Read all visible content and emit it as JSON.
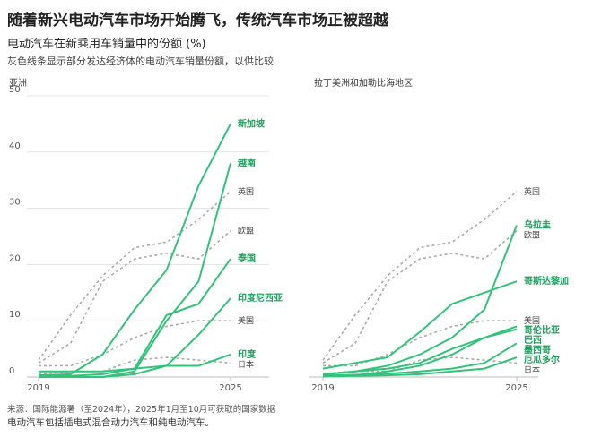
{
  "header": {
    "title": "随着新兴电动汽车市场开始腾飞，传统汽车市场正被超越",
    "subtitle": "电动汽车在新乘用车销量中的份额 (%)",
    "description": "灰色线条显示部分发达经济体的电动汽车销量份额，以供比较"
  },
  "footer": {
    "source": "来源：国际能源署（至2024年），2025年1月至10月可获取的国家数据",
    "note": "电动汽车包括插电式混合动力汽车和纯电动汽车。"
  },
  "chart_data": [
    {
      "type": "line",
      "title": "亚洲",
      "x": [
        2019,
        2020,
        2021,
        2022,
        2023,
        2024,
        2025
      ],
      "xlim": [
        2019,
        2025
      ],
      "xticks": [
        2019,
        2025
      ],
      "ylim": [
        0,
        50
      ],
      "yticks": [
        0,
        10,
        20,
        30,
        40,
        50
      ],
      "grid": true,
      "series": [
        {
          "name": "英国",
          "color": "#aaaaaa",
          "linestyle": "dashed",
          "values": [
            3,
            11,
            18,
            23,
            24,
            28,
            33
          ]
        },
        {
          "name": "欧盟",
          "color": "#aaaaaa",
          "linestyle": "dashed",
          "values": [
            2.5,
            6,
            17,
            21,
            22,
            21,
            26
          ]
        },
        {
          "name": "美国",
          "color": "#aaaaaa",
          "linestyle": "dashed",
          "values": [
            2,
            2,
            4,
            7,
            9,
            10,
            10
          ]
        },
        {
          "name": "日本",
          "color": "#aaaaaa",
          "linestyle": "dashed",
          "values": [
            0.5,
            1,
            1,
            3,
            3.5,
            3,
            2.5
          ]
        },
        {
          "name": "新加坡",
          "color": "#33c27a",
          "linestyle": "solid",
          "values": [
            0.3,
            0.5,
            4,
            12,
            19,
            34,
            45
          ]
        },
        {
          "name": "越南",
          "color": "#33c27a",
          "linestyle": "solid",
          "values": [
            0,
            0,
            0,
            1,
            10,
            17,
            38
          ]
        },
        {
          "name": "泰国",
          "color": "#33c27a",
          "linestyle": "solid",
          "values": [
            0.2,
            0.2,
            0.5,
            1.5,
            11,
            13,
            21
          ]
        },
        {
          "name": "印度尼西亚",
          "color": "#33c27a",
          "linestyle": "solid",
          "values": [
            0,
            0,
            0,
            0.5,
            2,
            7.5,
            14
          ]
        },
        {
          "name": "印度",
          "color": "#33c27a",
          "linestyle": "solid",
          "values": [
            1,
            1,
            1,
            1.5,
            2,
            2,
            4
          ]
        }
      ]
    },
    {
      "type": "line",
      "title": "拉丁美洲和加勒比海地区",
      "x": [
        2019,
        2020,
        2021,
        2022,
        2023,
        2024,
        2025
      ],
      "xlim": [
        2019,
        2025
      ],
      "xticks": [
        2019,
        2025
      ],
      "ylim": [
        0,
        50
      ],
      "grid": false,
      "series": [
        {
          "name": "英国",
          "color": "#aaaaaa",
          "linestyle": "dashed",
          "values": [
            3,
            11,
            18,
            23,
            24,
            28,
            33
          ]
        },
        {
          "name": "欧盟",
          "color": "#aaaaaa",
          "linestyle": "dashed",
          "values": [
            2.5,
            6,
            17,
            21,
            22,
            21,
            26
          ]
        },
        {
          "name": "美国",
          "color": "#aaaaaa",
          "linestyle": "dashed",
          "values": [
            2,
            2,
            4,
            7,
            9,
            10,
            10
          ]
        },
        {
          "name": "日本",
          "color": "#aaaaaa",
          "linestyle": "dashed",
          "values": [
            0.5,
            1,
            1,
            3,
            3.5,
            3,
            2.5
          ]
        },
        {
          "name": "乌拉圭",
          "color": "#33c27a",
          "linestyle": "solid",
          "values": [
            0.5,
            1,
            2,
            4,
            7,
            12,
            27
          ]
        },
        {
          "name": "哥斯达黎加",
          "color": "#33c27a",
          "linestyle": "solid",
          "values": [
            1.5,
            2.5,
            3.5,
            8,
            13,
            15,
            17
          ]
        },
        {
          "name": "哥伦比亚",
          "color": "#33c27a",
          "linestyle": "solid",
          "values": [
            0.5,
            1,
            1.5,
            2.5,
            5,
            7,
            9
          ]
        },
        {
          "name": "巴西",
          "color": "#33c27a",
          "linestyle": "solid",
          "values": [
            0.2,
            0.3,
            1,
            2,
            4,
            7,
            8.5
          ]
        },
        {
          "name": "墨西哥",
          "color": "#33c27a",
          "linestyle": "solid",
          "values": [
            0.3,
            0.4,
            0.6,
            1,
            1.5,
            2.5,
            6
          ]
        },
        {
          "name": "厄瓜多尔",
          "color": "#33c27a",
          "linestyle": "solid",
          "values": [
            0.1,
            0.2,
            0.3,
            0.5,
            1,
            1.5,
            3.5
          ]
        }
      ]
    }
  ]
}
